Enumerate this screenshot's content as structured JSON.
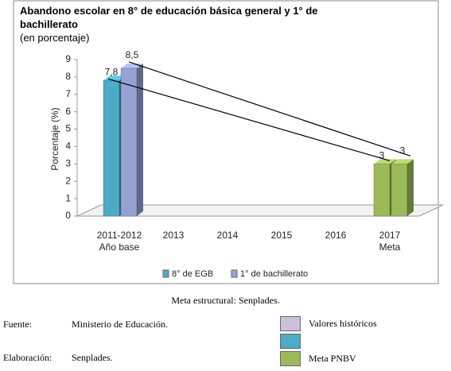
{
  "chart_data": {
    "type": "bar3d",
    "title": "Abandono escolar en 8° de educación básica general y 1° de bachillerato",
    "subtitle": "(en porcentaje)",
    "y_label": "Porcentaje (%)",
    "categories": [
      "2011-2012",
      "2013",
      "2014",
      "2015",
      "2016",
      "2017"
    ],
    "category_sublabels": [
      "Año base",
      null,
      null,
      null,
      null,
      "Meta"
    ],
    "series": [
      {
        "name": "8° de EGB",
        "color": "#4bacc6",
        "colors": [
          "#4bacc6",
          null,
          null,
          null,
          null,
          "#9bbb59"
        ],
        "values": [
          7.8,
          null,
          null,
          null,
          null,
          3
        ],
        "value_labels": [
          "7,8",
          null,
          null,
          null,
          null,
          "3"
        ]
      },
      {
        "name": "1° de bachillerato",
        "color": "#95a3d3",
        "colors": [
          "#95a3d3",
          null,
          null,
          null,
          null,
          "#9bbb59"
        ],
        "values": [
          8.5,
          null,
          null,
          null,
          null,
          3
        ],
        "value_labels": [
          "8,5",
          null,
          null,
          null,
          null,
          "3"
        ]
      }
    ],
    "trend_lines": true,
    "ylim": [
      0,
      9
    ],
    "yticks": [
      0,
      1,
      2,
      3,
      4,
      5,
      6,
      7,
      8,
      9
    ]
  },
  "document": {
    "caption": "Meta estructural: Senplades.",
    "source_label": "Fuente:",
    "source": "Ministerio de Educación.",
    "author_label": "Elaboración:",
    "author": "Senplades.",
    "key": [
      {
        "label": "Valores históricos",
        "color": "#ccc0da"
      },
      {
        "label": null,
        "color": "#4bacc6"
      },
      {
        "label": "Meta PNBV",
        "color": "#9bbb59"
      }
    ]
  }
}
